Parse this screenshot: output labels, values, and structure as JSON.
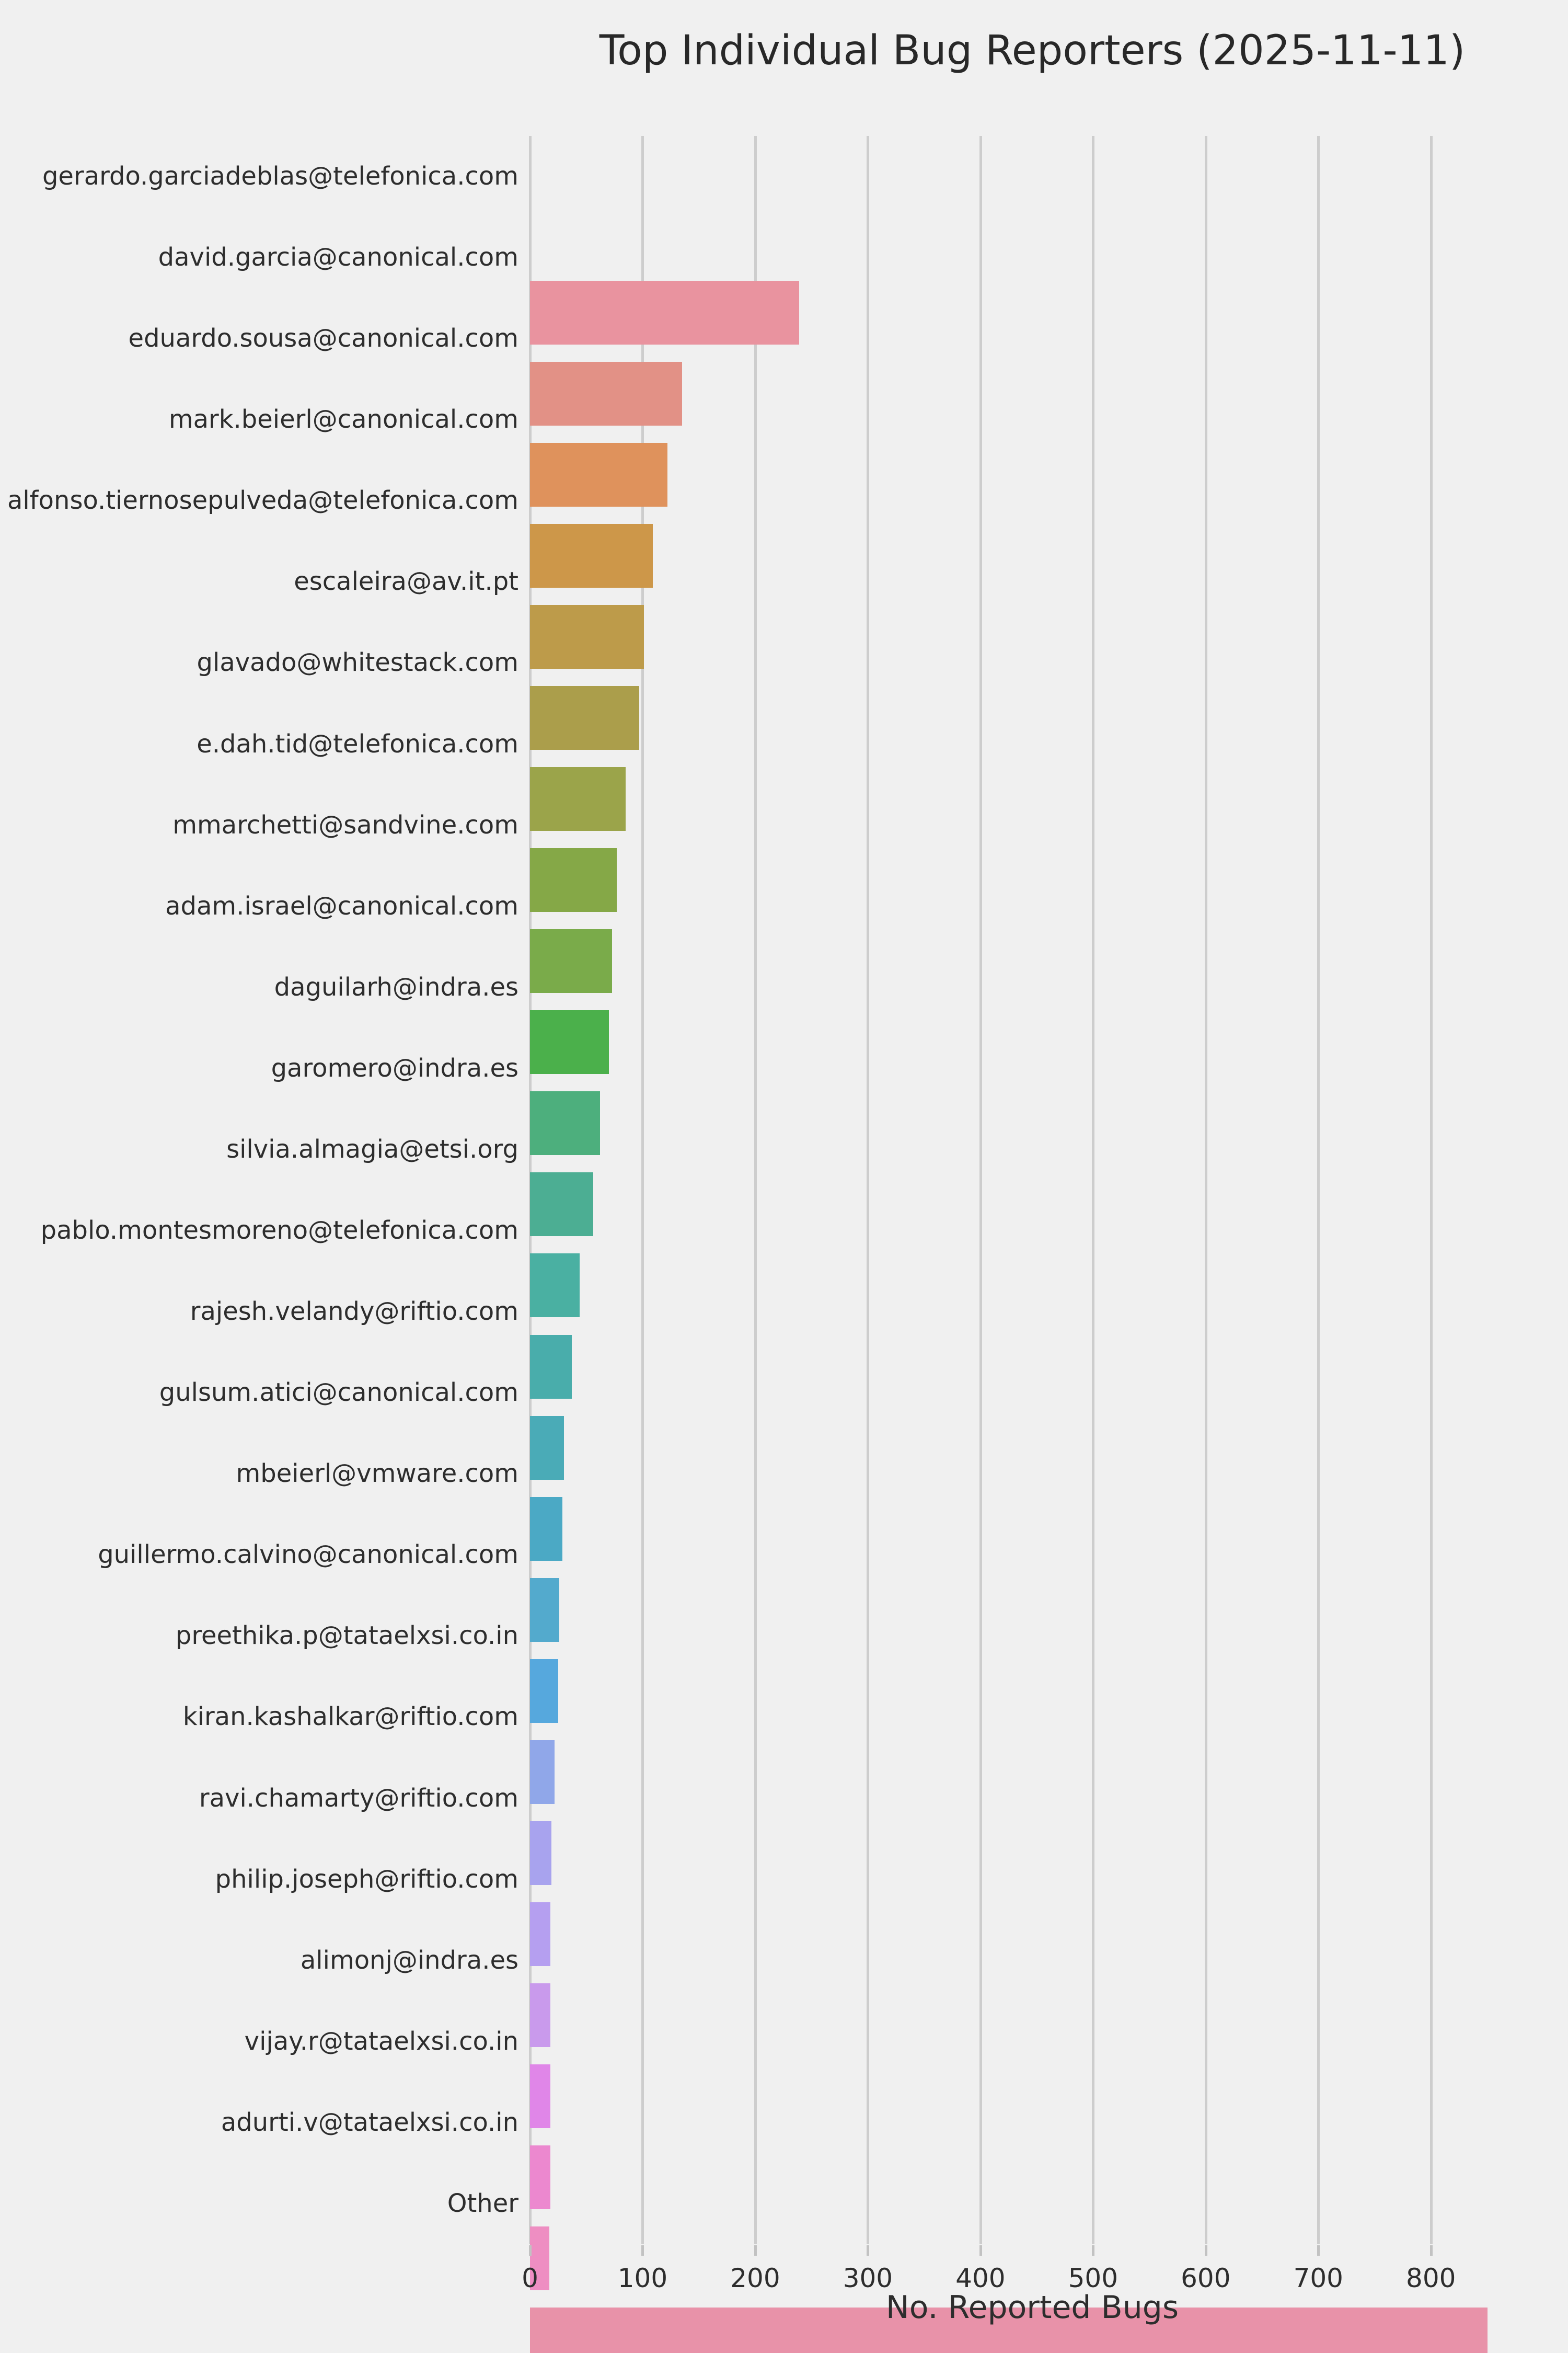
{
  "chart_data": {
    "type": "bar",
    "orientation": "horizontal",
    "title": "Top Individual Bug Reporters (2025-11-11)",
    "xlabel": "No. Reported Bugs",
    "ylabel": "",
    "grid": true,
    "legend": "none",
    "xlim": [
      0,
      892
    ],
    "xticks": [
      0,
      100,
      200,
      300,
      400,
      500,
      600,
      700,
      800
    ],
    "categories": [
      "gerardo.garciadeblas@telefonica.com",
      "david.garcia@canonical.com",
      "eduardo.sousa@canonical.com",
      "mark.beierl@canonical.com",
      "alfonso.tiernosepulveda@telefonica.com",
      "escaleira@av.it.pt",
      "glavado@whitestack.com",
      "e.dah.tid@telefonica.com",
      "mmarchetti@sandvine.com",
      "adam.israel@canonical.com",
      "daguilarh@indra.es",
      "garomero@indra.es",
      "silvia.almagia@etsi.org",
      "pablo.montesmoreno@telefonica.com",
      "rajesh.velandy@riftio.com",
      "gulsum.atici@canonical.com",
      "mbeierl@vmware.com",
      "guillermo.calvino@canonical.com",
      "preethika.p@tataelxsi.co.in",
      "kiran.kashalkar@riftio.com",
      "ravi.chamarty@riftio.com",
      "philip.joseph@riftio.com",
      "alimonj@indra.es",
      "vijay.r@tataelxsi.co.in",
      "adurti.v@tataelxsi.co.in",
      "Other"
    ],
    "values": [
      239,
      135,
      122,
      109,
      101,
      97,
      85,
      77,
      73,
      70,
      62,
      56,
      44,
      37,
      30,
      29,
      26,
      25,
      22,
      19,
      18,
      18,
      18,
      18,
      17,
      850
    ],
    "bar_colors": [
      "#e9939f",
      "#e29186",
      "#df925c",
      "#cd9749",
      "#bd9b4a",
      "#ab9e4b",
      "#9ba44a",
      "#85a847",
      "#7aab4a",
      "#4bb04b",
      "#4daf7d",
      "#4cae93",
      "#4ab0a2",
      "#49adab",
      "#4aabb7",
      "#4ba9c5",
      "#53aacd",
      "#56a8dd",
      "#90a7e9",
      "#a8a3ee",
      "#b59ff0",
      "#c99aec",
      "#e086e8",
      "#ec88cf",
      "#ee8ec2",
      "#e892a9"
    ],
    "colors": {
      "background": "#f0f0f0",
      "gridline": "#cdcdcd",
      "tick_mark": "#c2c2c2",
      "text": "#2d2d2d",
      "title_text": "#282828"
    }
  }
}
